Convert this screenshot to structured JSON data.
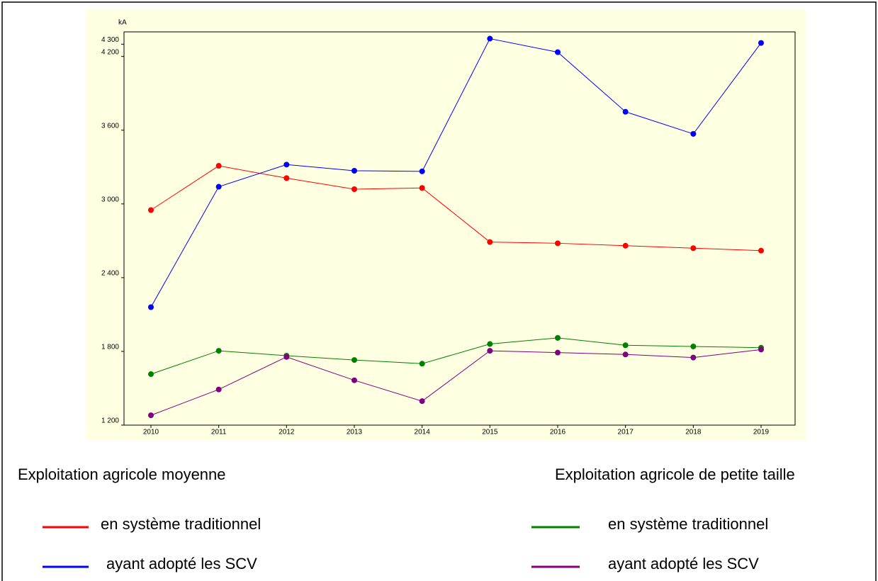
{
  "chart_data": {
    "type": "line",
    "y_label": "kA",
    "categories": [
      "2010",
      "2011",
      "2012",
      "2013",
      "2014",
      "2015",
      "2016",
      "2017",
      "2018",
      "2019"
    ],
    "ylim": [
      1200,
      4400
    ],
    "yticks": [
      {
        "value": 1200,
        "label": "1 200"
      },
      {
        "value": 1800,
        "label": "1 800"
      },
      {
        "value": 2400,
        "label": "2 400"
      },
      {
        "value": 3000,
        "label": "3 000"
      },
      {
        "value": 3600,
        "label": "3 600"
      },
      {
        "value": 4200,
        "label": "4 200"
      },
      {
        "value": 4300,
        "label": "4 300"
      }
    ],
    "background": "#ffffe1",
    "groups": [
      {
        "title": "Exploitation agricole moyenne",
        "series": [
          {
            "name": "en système traditionnel",
            "color": "#ff0000",
            "values": [
              2950,
              3310,
              3210,
              3120,
              3130,
              2690,
              2680,
              2660,
              2640,
              2620
            ]
          },
          {
            "name": "ayant adopté les SCV",
            "color": "#0000ff",
            "values": [
              2160,
              3140,
              3320,
              3270,
              3265,
              4345,
              4235,
              3750,
              3570,
              4310
            ]
          }
        ]
      },
      {
        "title": "Exploitation agricole de petite taille",
        "series": [
          {
            "name": "en système traditionnel",
            "color": "#008000",
            "values": [
              1615,
              1805,
              1765,
              1730,
              1700,
              1860,
              1910,
              1850,
              1840,
              1830
            ]
          },
          {
            "name": "ayant adopté les SCV",
            "color": "#800080",
            "values": [
              1280,
              1490,
              1755,
              1565,
              1395,
              1805,
              1790,
              1775,
              1750,
              1815
            ]
          }
        ]
      }
    ]
  }
}
